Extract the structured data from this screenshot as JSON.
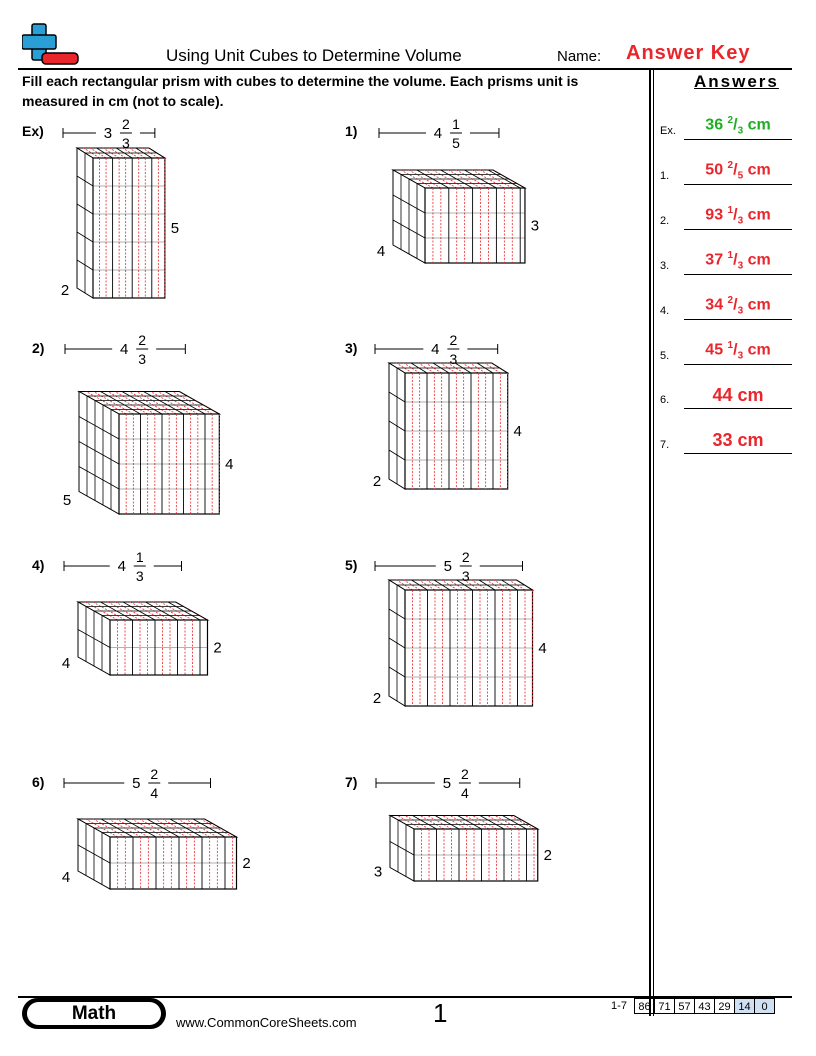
{
  "header": {
    "title": "Using Unit Cubes to Determine Volume",
    "name_label": "Name:",
    "answer_key": "Answer Key",
    "logo_icon": "plus-minus-logo-icon",
    "accent_color": "#e8262b"
  },
  "instructions": "Fill each rectangular prism with cubes to determine the volume. Each prisms unit is measured in cm (not to scale).",
  "answers": {
    "header": "Answers",
    "items": [
      {
        "label": "Ex.",
        "whole": "36 ",
        "num": "2",
        "den": "3",
        "unit": " cm",
        "color": "green"
      },
      {
        "label": "1.",
        "whole": "50 ",
        "num": "2",
        "den": "5",
        "unit": " cm",
        "color": "red"
      },
      {
        "label": "2.",
        "whole": "93 ",
        "num": "1",
        "den": "3",
        "unit": " cm",
        "color": "red"
      },
      {
        "label": "3.",
        "whole": "37 ",
        "num": "1",
        "den": "3",
        "unit": " cm",
        "color": "red"
      },
      {
        "label": "4.",
        "whole": "34 ",
        "num": "2",
        "den": "3",
        "unit": " cm",
        "color": "red"
      },
      {
        "label": "5.",
        "whole": "45 ",
        "num": "1",
        "den": "3",
        "unit": " cm",
        "color": "red"
      },
      {
        "label": "6.",
        "whole": "44 cm",
        "num": "",
        "den": "",
        "unit": "",
        "color": "red"
      },
      {
        "label": "7.",
        "whole": "33 cm",
        "num": "",
        "den": "",
        "unit": "",
        "color": "red"
      }
    ]
  },
  "problems": [
    {
      "label": "Ex)",
      "width_whole": "3",
      "width_num": "2",
      "width_den": "3",
      "height": "5",
      "depth": "2",
      "w": 3.667,
      "h": 5,
      "d": 2
    },
    {
      "label": "1)",
      "width_whole": "4",
      "width_num": "1",
      "width_den": "5",
      "height": "3",
      "depth": "4",
      "w": 4.2,
      "h": 3,
      "d": 4
    },
    {
      "label": "2)",
      "width_whole": "4",
      "width_num": "2",
      "width_den": "3",
      "height": "4",
      "depth": "5",
      "w": 4.667,
      "h": 4,
      "d": 5
    },
    {
      "label": "3)",
      "width_whole": "4",
      "width_num": "2",
      "width_den": "3",
      "height": "4",
      "depth": "2",
      "w": 4.667,
      "h": 4,
      "d": 2
    },
    {
      "label": "4)",
      "width_whole": "4",
      "width_num": "1",
      "width_den": "3",
      "height": "2",
      "depth": "4",
      "w": 4.333,
      "h": 2,
      "d": 4
    },
    {
      "label": "5)",
      "width_whole": "5",
      "width_num": "2",
      "width_den": "3",
      "height": "4",
      "depth": "2",
      "w": 5.667,
      "h": 4,
      "d": 2
    },
    {
      "label": "6)",
      "width_whole": "5",
      "width_num": "2",
      "width_den": "4",
      "height": "2",
      "depth": "4",
      "w": 5.5,
      "h": 2,
      "d": 4
    },
    {
      "label": "7)",
      "width_whole": "5",
      "width_num": "2",
      "width_den": "4",
      "height": "2",
      "depth": "3",
      "w": 5.5,
      "h": 2,
      "d": 3
    }
  ],
  "footer": {
    "subject": "Math",
    "website": "www.CommonCoreSheets.com",
    "page": "1",
    "score_range": "1-7",
    "scores": [
      "86",
      "71",
      "57",
      "43",
      "29",
      "14",
      "0"
    ],
    "highlight_color": "#cfe0f3"
  }
}
